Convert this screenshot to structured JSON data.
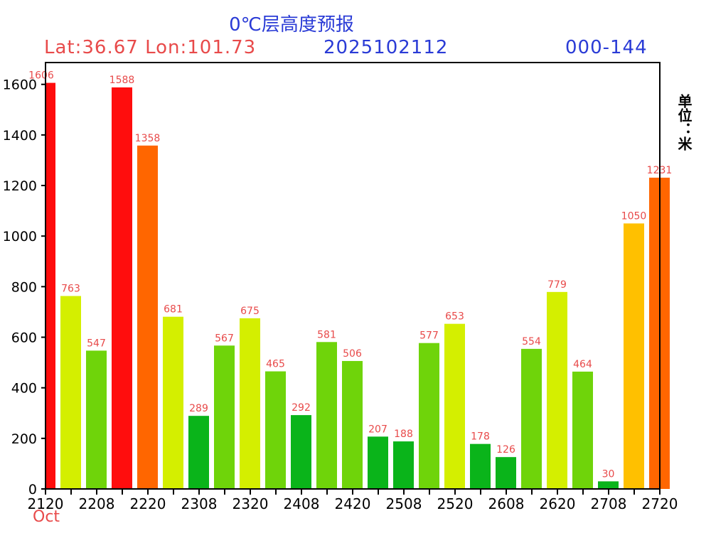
{
  "header": {
    "title": "0℃层高度预报",
    "latlon": "Lat:36.67 Lon:101.73",
    "date_code": "2025102112",
    "range": "000-144",
    "unit": "单位：米",
    "month": "Oct"
  },
  "colors": {
    "red": "#ff0d0d",
    "orange_red": "#ff6600",
    "yellow": "#d4ef00",
    "yellow_green": "#6fd40a",
    "green": "#0ab41a",
    "gold": "#ffc000",
    "label": "#e84a4a"
  },
  "chart_data": {
    "type": "bar",
    "title": "0℃层高度预报",
    "ylim": [
      0,
      1700
    ],
    "yticks": [
      0,
      200,
      400,
      600,
      800,
      1000,
      1200,
      1400,
      1600
    ],
    "xtick_labels": [
      "2120",
      "2208",
      "2220",
      "2308",
      "2320",
      "2408",
      "2420",
      "2508",
      "2520",
      "2608",
      "2620",
      "2708",
      "2720"
    ],
    "values": [
      1606,
      763,
      547,
      1588,
      1358,
      681,
      289,
      567,
      675,
      465,
      292,
      581,
      506,
      207,
      188,
      577,
      653,
      178,
      126,
      554,
      779,
      464,
      30,
      1050,
      1231
    ],
    "bar_colors": [
      "red",
      "yellow",
      "yellow_green",
      "red",
      "orange_red",
      "yellow",
      "green",
      "yellow_green",
      "yellow",
      "yellow_green",
      "green",
      "yellow_green",
      "yellow_green",
      "green",
      "green",
      "yellow_green",
      "yellow",
      "green",
      "green",
      "yellow_green",
      "yellow",
      "yellow_green",
      "green",
      "gold",
      "orange_red"
    ],
    "grid": false
  }
}
